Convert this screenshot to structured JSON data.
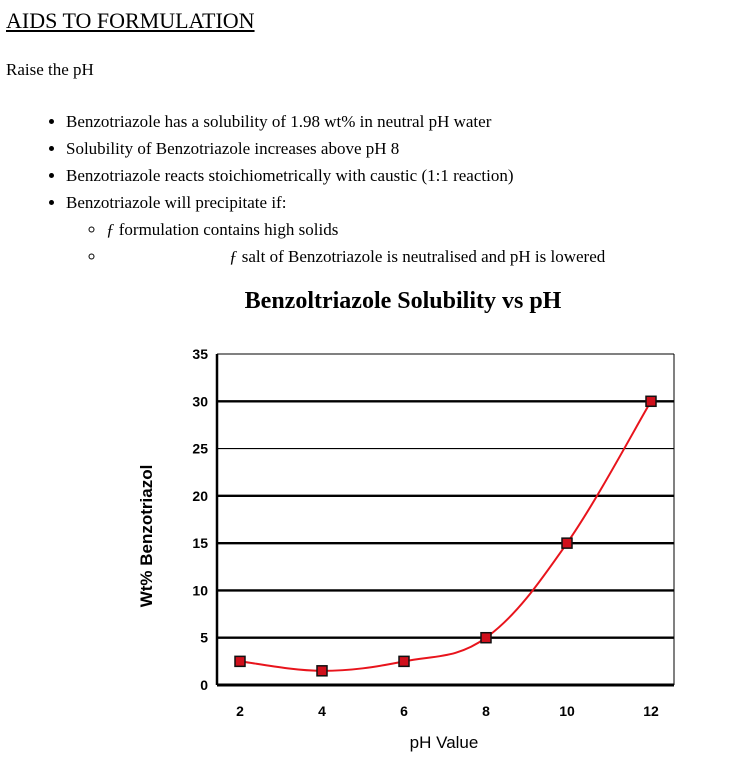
{
  "heading": "AIDS TO FORMULATION",
  "intro": "Raise the pH",
  "bullets": [
    "Benzotriazole has a solubility of 1.98 wt% in neutral pH water",
    "Solubility of Benzotriazole increases above pH 8",
    "Benzotriazole reacts stoichiometrically with caustic (1:1 reaction)",
    "Benzotriazole will precipitate if:"
  ],
  "sub_bullets": [
    {
      "symbol": "ƒ",
      "text": " formulation contains high solids"
    },
    {
      "symbol": "ƒ",
      "text": " salt of Benzotriazole is neutralised and pH is lowered"
    }
  ],
  "chart_data": {
    "type": "line",
    "title": "Benzoltriazole Solubility vs pH",
    "xlabel": "pH Value",
    "ylabel": "Wt% Benzotriazol",
    "x": [
      2,
      4,
      6,
      8,
      10,
      12
    ],
    "x_tick_labels": [
      "2",
      "4",
      "6",
      "8",
      "10",
      "12"
    ],
    "y_ticks": [
      0,
      5,
      10,
      15,
      20,
      25,
      30,
      35
    ],
    "ylim": [
      0,
      35
    ],
    "grid": "horizontal",
    "series": [
      {
        "values": [
          2.5,
          1.5,
          2.5,
          5,
          15,
          30
        ],
        "color": "#e8141c",
        "marker_color": "#d0101c"
      }
    ]
  }
}
